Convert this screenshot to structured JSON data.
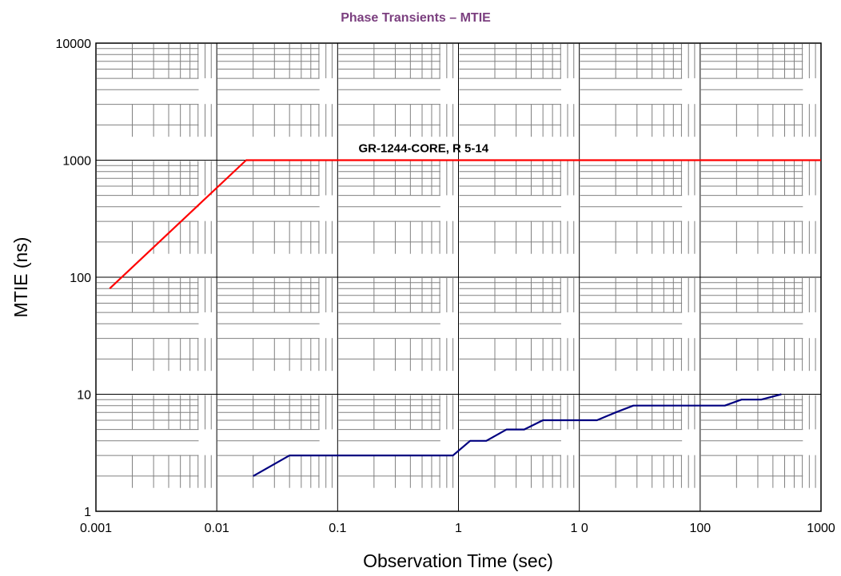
{
  "chart_data": {
    "type": "line",
    "title": "Phase Transients – MTIE",
    "xlabel": "Observation Time (sec)",
    "ylabel": "MTIE (ns)",
    "x_scale": "log",
    "y_scale": "log",
    "xlim": [
      0.001,
      1000
    ],
    "ylim": [
      1,
      10000
    ],
    "x_ticks": [
      {
        "value": 0.001,
        "label": "0.001"
      },
      {
        "value": 0.01,
        "label": "0.01"
      },
      {
        "value": 0.1,
        "label": "0.1"
      },
      {
        "value": 1,
        "label": "1"
      },
      {
        "value": 10,
        "label": "1 0"
      },
      {
        "value": 100,
        "label": "100"
      },
      {
        "value": 1000,
        "label": "1000"
      }
    ],
    "y_ticks": [
      {
        "value": 1,
        "label": "1"
      },
      {
        "value": 10,
        "label": "10"
      },
      {
        "value": 100,
        "label": "100"
      },
      {
        "value": 1000,
        "label": "1000"
      },
      {
        "value": 10000,
        "label": "10000"
      }
    ],
    "grid": true,
    "colors": {
      "title": "#7b3f7f",
      "mask": "#ff0000",
      "measured": "#000080",
      "major_grid": "#000000",
      "minor_grid": "#808080"
    },
    "series": [
      {
        "id": "mask",
        "points": [
          [
            0.0013,
            80
          ],
          [
            0.0175,
            1000
          ],
          [
            1000,
            1000
          ]
        ]
      },
      {
        "id": "measured",
        "points": [
          [
            0.02,
            2
          ],
          [
            0.04,
            3
          ],
          [
            0.9,
            3
          ],
          [
            1.25,
            4
          ],
          [
            1.7,
            4
          ],
          [
            2.5,
            5
          ],
          [
            3.5,
            5
          ],
          [
            5,
            6
          ],
          [
            14,
            6
          ],
          [
            20,
            7
          ],
          [
            28,
            8
          ],
          [
            160,
            8
          ],
          [
            220,
            9
          ],
          [
            320,
            9
          ],
          [
            470,
            10
          ]
        ]
      }
    ],
    "annotations": [
      {
        "text": "GR-1244-CORE, R 5-14",
        "x": 1,
        "y": 1000
      }
    ]
  }
}
